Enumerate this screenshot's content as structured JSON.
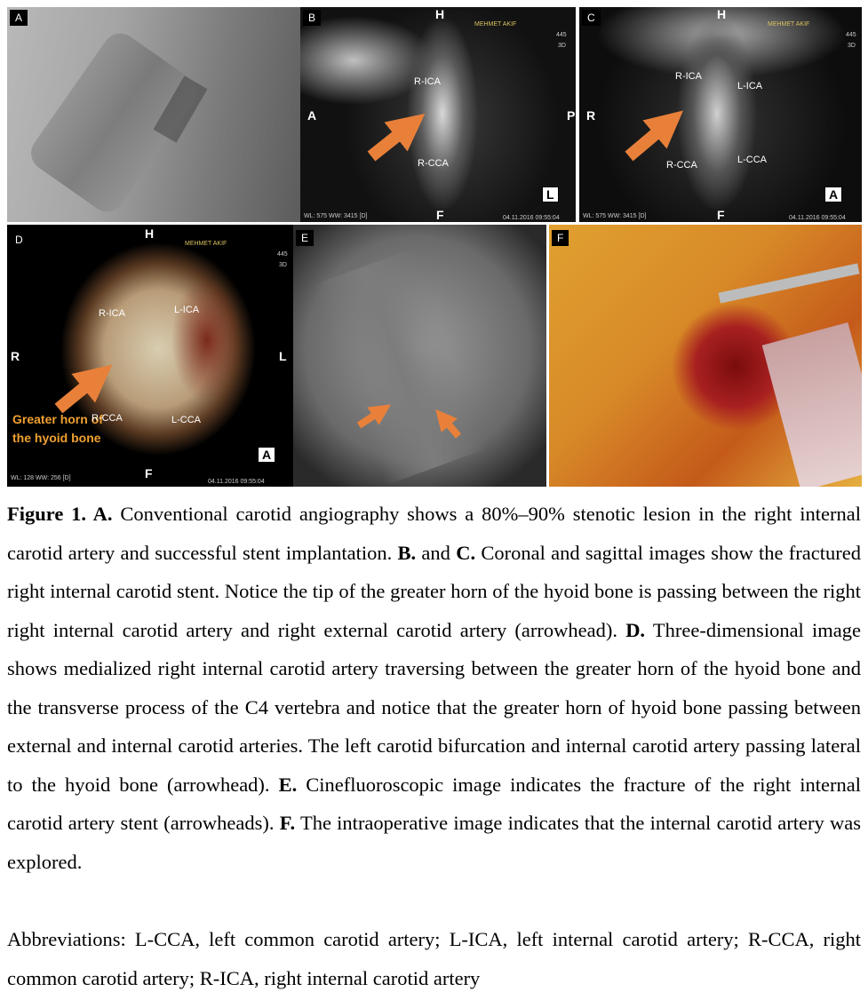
{
  "figure": {
    "panels": [
      {
        "letter": "A",
        "labels": []
      },
      {
        "letter": "B",
        "labels": [
          "H",
          "MEHMET AKIF",
          "445",
          "3D",
          "R-ICA",
          "A",
          "P",
          "R-CCA",
          "L",
          "F",
          "WL: 575 WW: 3415 [D]",
          "04.11.2016 09:55:04"
        ]
      },
      {
        "letter": "C",
        "labels": [
          "H",
          "MEHMET AKIF",
          "445",
          "3D",
          "R-ICA",
          "L-ICA",
          "R",
          "R-CCA",
          "L-CCA",
          "A",
          "F",
          "WL: 575 WW: 3415 [D]",
          "04.11.2016 09:55:04"
        ]
      },
      {
        "letter": "D",
        "labels": [
          "H",
          "MEHMET AKIF",
          "445",
          "3D",
          "R-ICA",
          "L-ICA",
          "R",
          "L",
          "Greater horn of the hyoid bone",
          "R-CCA",
          "L-CCA",
          "A",
          "F",
          "WL: 128 WW: 256 [D]",
          "04.11.2016 09:55:04"
        ]
      },
      {
        "letter": "E",
        "labels": []
      },
      {
        "letter": "F",
        "labels": []
      }
    ],
    "caption": [
      {
        "text": "Figure 1. A.",
        "bold": true
      },
      {
        "text": " Conventional carotid angiography shows a 80%–90% stenotic lesion in the right internal carotid artery and successful stent implantation. ",
        "bold": false
      },
      {
        "text": "B.",
        "bold": true
      },
      {
        "text": " and ",
        "bold": false
      },
      {
        "text": "C.",
        "bold": true
      },
      {
        "text": " Coronal and sagittal images show the fractured right internal carotid stent. Notice the tip of the greater horn of the hyoid bone is passing between the right right internal carotid artery and right external carotid artery (arrowhead). ",
        "bold": false
      },
      {
        "text": "D.",
        "bold": true
      },
      {
        "text": " Three-dimensional image shows medialized right internal carotid artery traversing between the greater horn of the hyoid bone and the transverse process of the C4 vertebra and notice that the greater horn of hyoid bone passing between external and internal carotid arteries. The left carotid bifurcation and internal carotid artery passing lateral to the hyoid bone (arrowhead). ",
        "bold": false
      },
      {
        "text": "E.",
        "bold": true
      },
      {
        "text": " Cinefluoroscopic image indicates the fracture of the right internal carotid artery stent (arrowheads). ",
        "bold": false
      },
      {
        "text": "F.",
        "bold": true
      },
      {
        "text": " The intraoperative image indicates that the internal carotid artery was explored.",
        "bold": false
      }
    ],
    "abbreviations": "Abbreviations: L-CCA, left common carotid artery; L-ICA, left internal carotid artery; R-CCA, right common carotid artery; R-ICA, right internal carotid artery"
  }
}
